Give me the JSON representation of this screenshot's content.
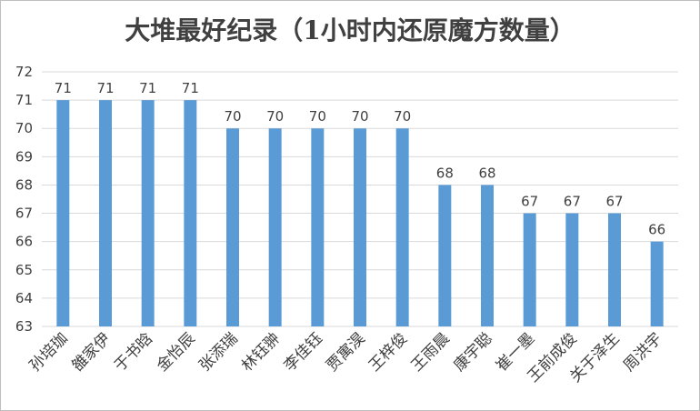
{
  "chart_data": {
    "type": "bar",
    "title": "大堆最好纪录（1小时内还原魔方数量）",
    "xlabel": "",
    "ylabel": "",
    "ylim": [
      63,
      72
    ],
    "yticks": [
      63,
      64,
      65,
      66,
      67,
      68,
      69,
      70,
      71,
      72
    ],
    "grid": true,
    "legend": "none",
    "bar_color": "#5B9BD5",
    "categories": [
      "孙培珈",
      "雒家伊",
      "于书晗",
      "金怡辰",
      "张添瑞",
      "林钰翀",
      "李佳钰",
      "贾寓淏",
      "王梓俊",
      "王雨晨",
      "康宇聪",
      "崔一墨",
      "王前成俊",
      "关于泽生",
      "周洪宇"
    ],
    "values": [
      71,
      71,
      71,
      71,
      70,
      70,
      70,
      70,
      70,
      68,
      68,
      67,
      67,
      67,
      66
    ]
  }
}
